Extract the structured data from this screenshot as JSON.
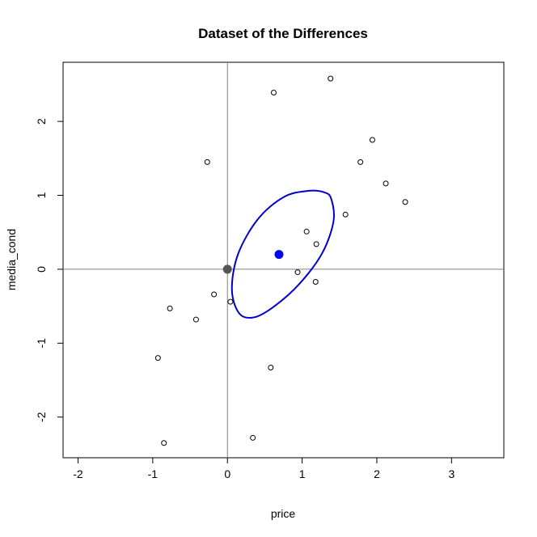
{
  "chart_data": {
    "type": "scatter",
    "title": "Dataset of the Differences",
    "xlabel": "price",
    "ylabel": "media_cond",
    "xlim": [
      -2.2,
      3.7
    ],
    "ylim": [
      -2.55,
      2.8
    ],
    "xticks": [
      -2,
      -1,
      0,
      1,
      2,
      3
    ],
    "yticks": [
      -2,
      -1,
      0,
      1,
      2
    ],
    "reference_lines": {
      "x": 0,
      "y": 0,
      "color": "#808080"
    },
    "points": [
      {
        "x": 1.38,
        "y": 2.58
      },
      {
        "x": 0.62,
        "y": 2.39
      },
      {
        "x": 1.94,
        "y": 1.75
      },
      {
        "x": -0.27,
        "y": 1.45
      },
      {
        "x": 1.78,
        "y": 1.45
      },
      {
        "x": 2.12,
        "y": 1.16
      },
      {
        "x": 2.38,
        "y": 0.91
      },
      {
        "x": 1.58,
        "y": 0.74
      },
      {
        "x": 1.06,
        "y": 0.51
      },
      {
        "x": 1.19,
        "y": 0.34
      },
      {
        "x": 0.94,
        "y": -0.04
      },
      {
        "x": 1.18,
        "y": -0.17
      },
      {
        "x": -0.18,
        "y": -0.34
      },
      {
        "x": 0.04,
        "y": -0.44
      },
      {
        "x": -0.77,
        "y": -0.53
      },
      {
        "x": -0.42,
        "y": -0.68
      },
      {
        "x": -0.93,
        "y": -1.2
      },
      {
        "x": 0.58,
        "y": -1.33
      },
      {
        "x": 0.34,
        "y": -2.28
      },
      {
        "x": -0.85,
        "y": -2.35
      }
    ],
    "origin_point": {
      "x": 0,
      "y": 0,
      "color": "#555555"
    },
    "mean_point": {
      "x": 0.69,
      "y": 0.2,
      "color": "#0000ff"
    },
    "ellipse": {
      "color": "#0000cc",
      "path": [
        [
          1.3,
          1.04
        ],
        [
          1.39,
          0.95
        ],
        [
          1.42,
          0.65
        ],
        [
          1.27,
          0.22
        ],
        [
          0.97,
          -0.19
        ],
        [
          0.63,
          -0.5
        ],
        [
          0.36,
          -0.65
        ],
        [
          0.16,
          -0.6
        ],
        [
          0.06,
          -0.28
        ],
        [
          0.14,
          0.2
        ],
        [
          0.41,
          0.68
        ],
        [
          0.76,
          0.98
        ],
        [
          1.08,
          1.06
        ],
        [
          1.3,
          1.04
        ]
      ]
    }
  }
}
